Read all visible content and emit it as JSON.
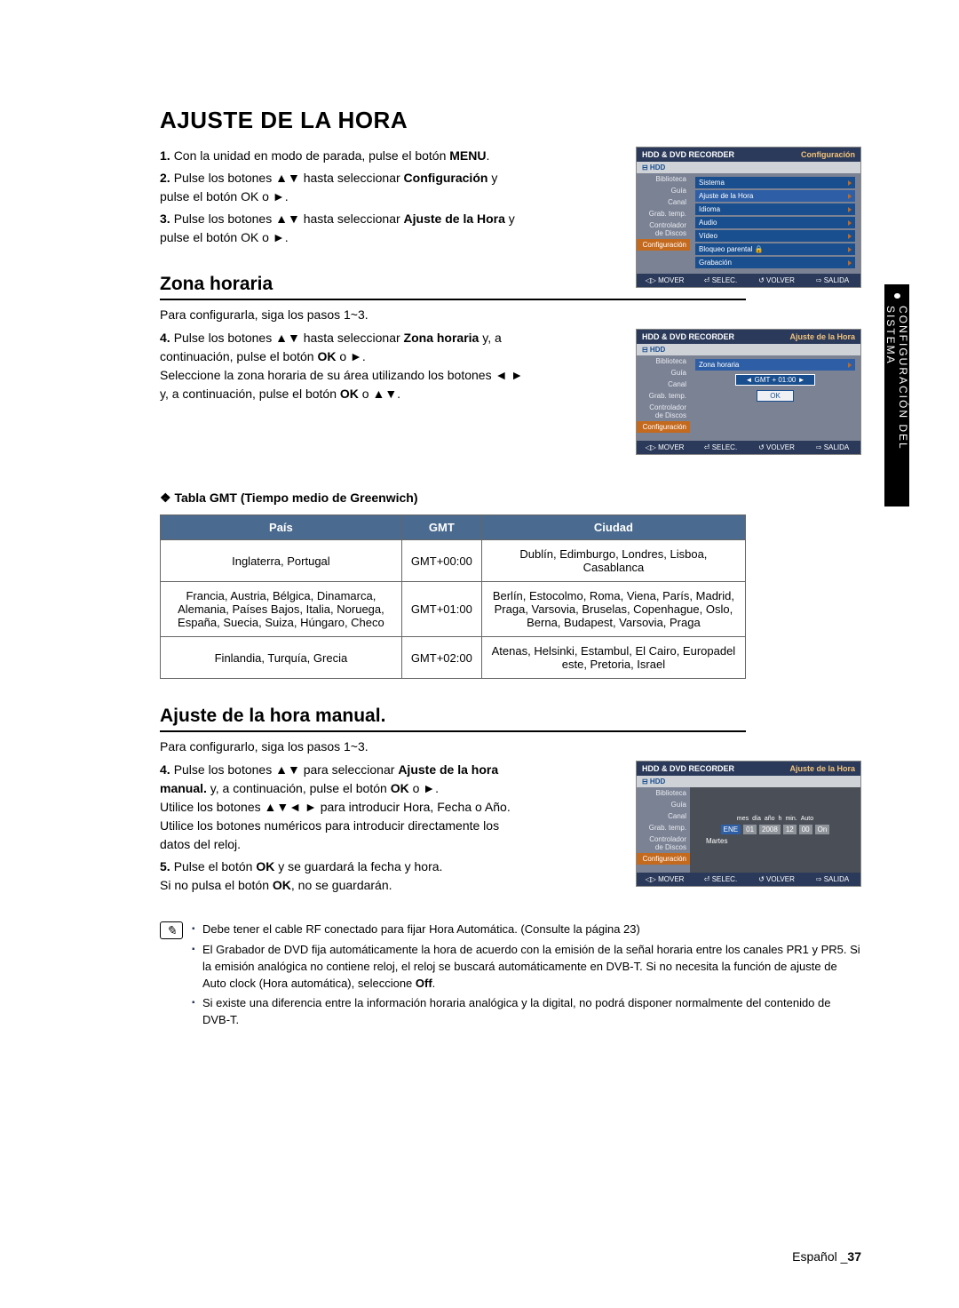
{
  "title": "AJUSTE DE LA HORA",
  "steps_main": [
    {
      "n": "1.",
      "t_pre": "Con la unidad en modo de parada, pulse el botón ",
      "b": "MENU",
      "t_post": "."
    },
    {
      "n": "2.",
      "t_pre": "Pulse los botones ▲▼ hasta seleccionar ",
      "b": "Configuración",
      "t_post": " y pulse el botón OK o ►."
    },
    {
      "n": "3.",
      "t_pre": "Pulse los botones ▲▼ hasta seleccionar ",
      "b": "Ajuste de la Hora",
      "t_post": " y pulse el botón OK o ►."
    }
  ],
  "zona_h2": "Zona horaria",
  "zona_sub": "Para configurarla, siga los pasos 1~3.",
  "zona_step": {
    "n": "4.",
    "lines": [
      "Pulse los botones ▲▼ hasta seleccionar <b>Zona horaria</b> y, a continuación, pulse el botón <b>OK</b> o ►.",
      "Seleccione la zona horaria de su área utilizando los botones ◄ ► y, a continuación, pulse el botón <b>OK</b> o ▲▼."
    ]
  },
  "gmt_title": "❖ Tabla GMT (Tiempo medio de Greenwich)",
  "gmt_table": {
    "headers": [
      "País",
      "GMT",
      "Ciudad"
    ],
    "rows": [
      [
        "Inglaterra, Portugal",
        "GMT+00:00",
        "Dublín, Edimburgo, Londres, Lisboa, Casablanca"
      ],
      [
        "Francia, Austria, Bélgica, Dinamarca, Alemania, Países Bajos, Italia, Noruega, España, Suecia, Suiza, Húngaro, Checo",
        "GMT+01:00",
        "Berlín, Estocolmo, Roma, Viena, París, Madrid, Praga, Varsovia, Bruselas, Copenhague, Oslo, Berna, Budapest, Varsovia, Praga"
      ],
      [
        "Finlandia, Turquía, Grecia",
        "GMT+02:00",
        "Atenas, Helsinki, Estambul, El Cairo, Europadel este, Pretoria, Israel"
      ]
    ]
  },
  "manual_h2": "Ajuste de la hora manual.",
  "manual_sub": "Para configurarlo, siga los pasos 1~3.",
  "manual_steps": [
    {
      "n": "4.",
      "html": "Pulse los botones ▲▼ para seleccionar <b>Ajuste de la hora manual.</b> y, a continuación, pulse el botón <b>OK</b> o ►.<br>Utilice los botones ▲▼◄ ► para introducir Hora, Fecha o Año. Utilice los botones numéricos para introducir directamente los datos del reloj."
    },
    {
      "n": "5.",
      "html": "Pulse el botón <b>OK</b> y se guardará la fecha y hora.<br>Si no pulsa el botón <b>OK</b>, no se guardarán."
    }
  ],
  "notes": [
    "Debe tener el cable RF conectado para fijar Hora Automática. (Consulte la página 23)",
    "El Grabador de DVD fija automáticamente la hora de acuerdo con la emisión de la señal horaria entre los canales PR1 y PR5. Si la emisión analógica no contiene reloj, el reloj se buscará automáticamente en DVB-T. Si no necesita la función de ajuste de Auto clock (Hora automática), seleccione <b>Off</b>.",
    "Si existe una diferencia entre la información horaria analógica y la digital, no podrá disponer normalmente del contenido de DVB-T."
  ],
  "side_tab": "CONFIGURACIÓN DEL SISTEMA",
  "foot_lang": "Español ",
  "foot_page": "37",
  "shot1": {
    "title_l": "HDD & DVD RECORDER",
    "title_r": "Configuración",
    "band": "⊟ HDD",
    "side": [
      "Biblioteca",
      "Guía",
      "Canal",
      "Grab. temp.",
      "Controlador de Discos",
      "Configuración"
    ],
    "rows": [
      "Sistema",
      "Ajuste de la Hora",
      "Idioma",
      "Audio",
      "Vídeo",
      "Bloqueo parental   🔒",
      "Grabación"
    ],
    "ftr": [
      "◁▷ MOVER",
      "⏎ SELEC.",
      "↺ VOLVER",
      "⇨ SALIDA"
    ]
  },
  "shot2": {
    "title_l": "HDD & DVD RECORDER",
    "title_r": "Ajuste de la Hora",
    "band": "⊟ HDD",
    "side": [
      "Biblioteca",
      "Guía",
      "Canal",
      "Grab. temp.",
      "Controlador de Discos",
      "Configuración"
    ],
    "z_label": "Zona horaria",
    "z_val": "GMT + 01:00",
    "ok": "OK",
    "ftr": [
      "◁▷ MOVER",
      "⏎ SELEC.",
      "↺ VOLVER",
      "⇨ SALIDA"
    ]
  },
  "shot3": {
    "title_l": "HDD & DVD RECORDER",
    "title_r": "Ajuste de la Hora",
    "band": "⊟ HDD",
    "side": [
      "Biblioteca",
      "Guía",
      "Canal",
      "Grab. temp.",
      "Controlador de Discos",
      "Configuración"
    ],
    "hdr": [
      "mes",
      "día",
      "año",
      "h",
      "min.",
      "Auto"
    ],
    "vals": [
      "ENE",
      "01",
      "2008",
      "12",
      "00",
      "On"
    ],
    "day": "Martes",
    "ftr": [
      "◁▷ MOVER",
      "⏎ SELEC.",
      "↺ VOLVER",
      "⇨ SALIDA"
    ]
  }
}
